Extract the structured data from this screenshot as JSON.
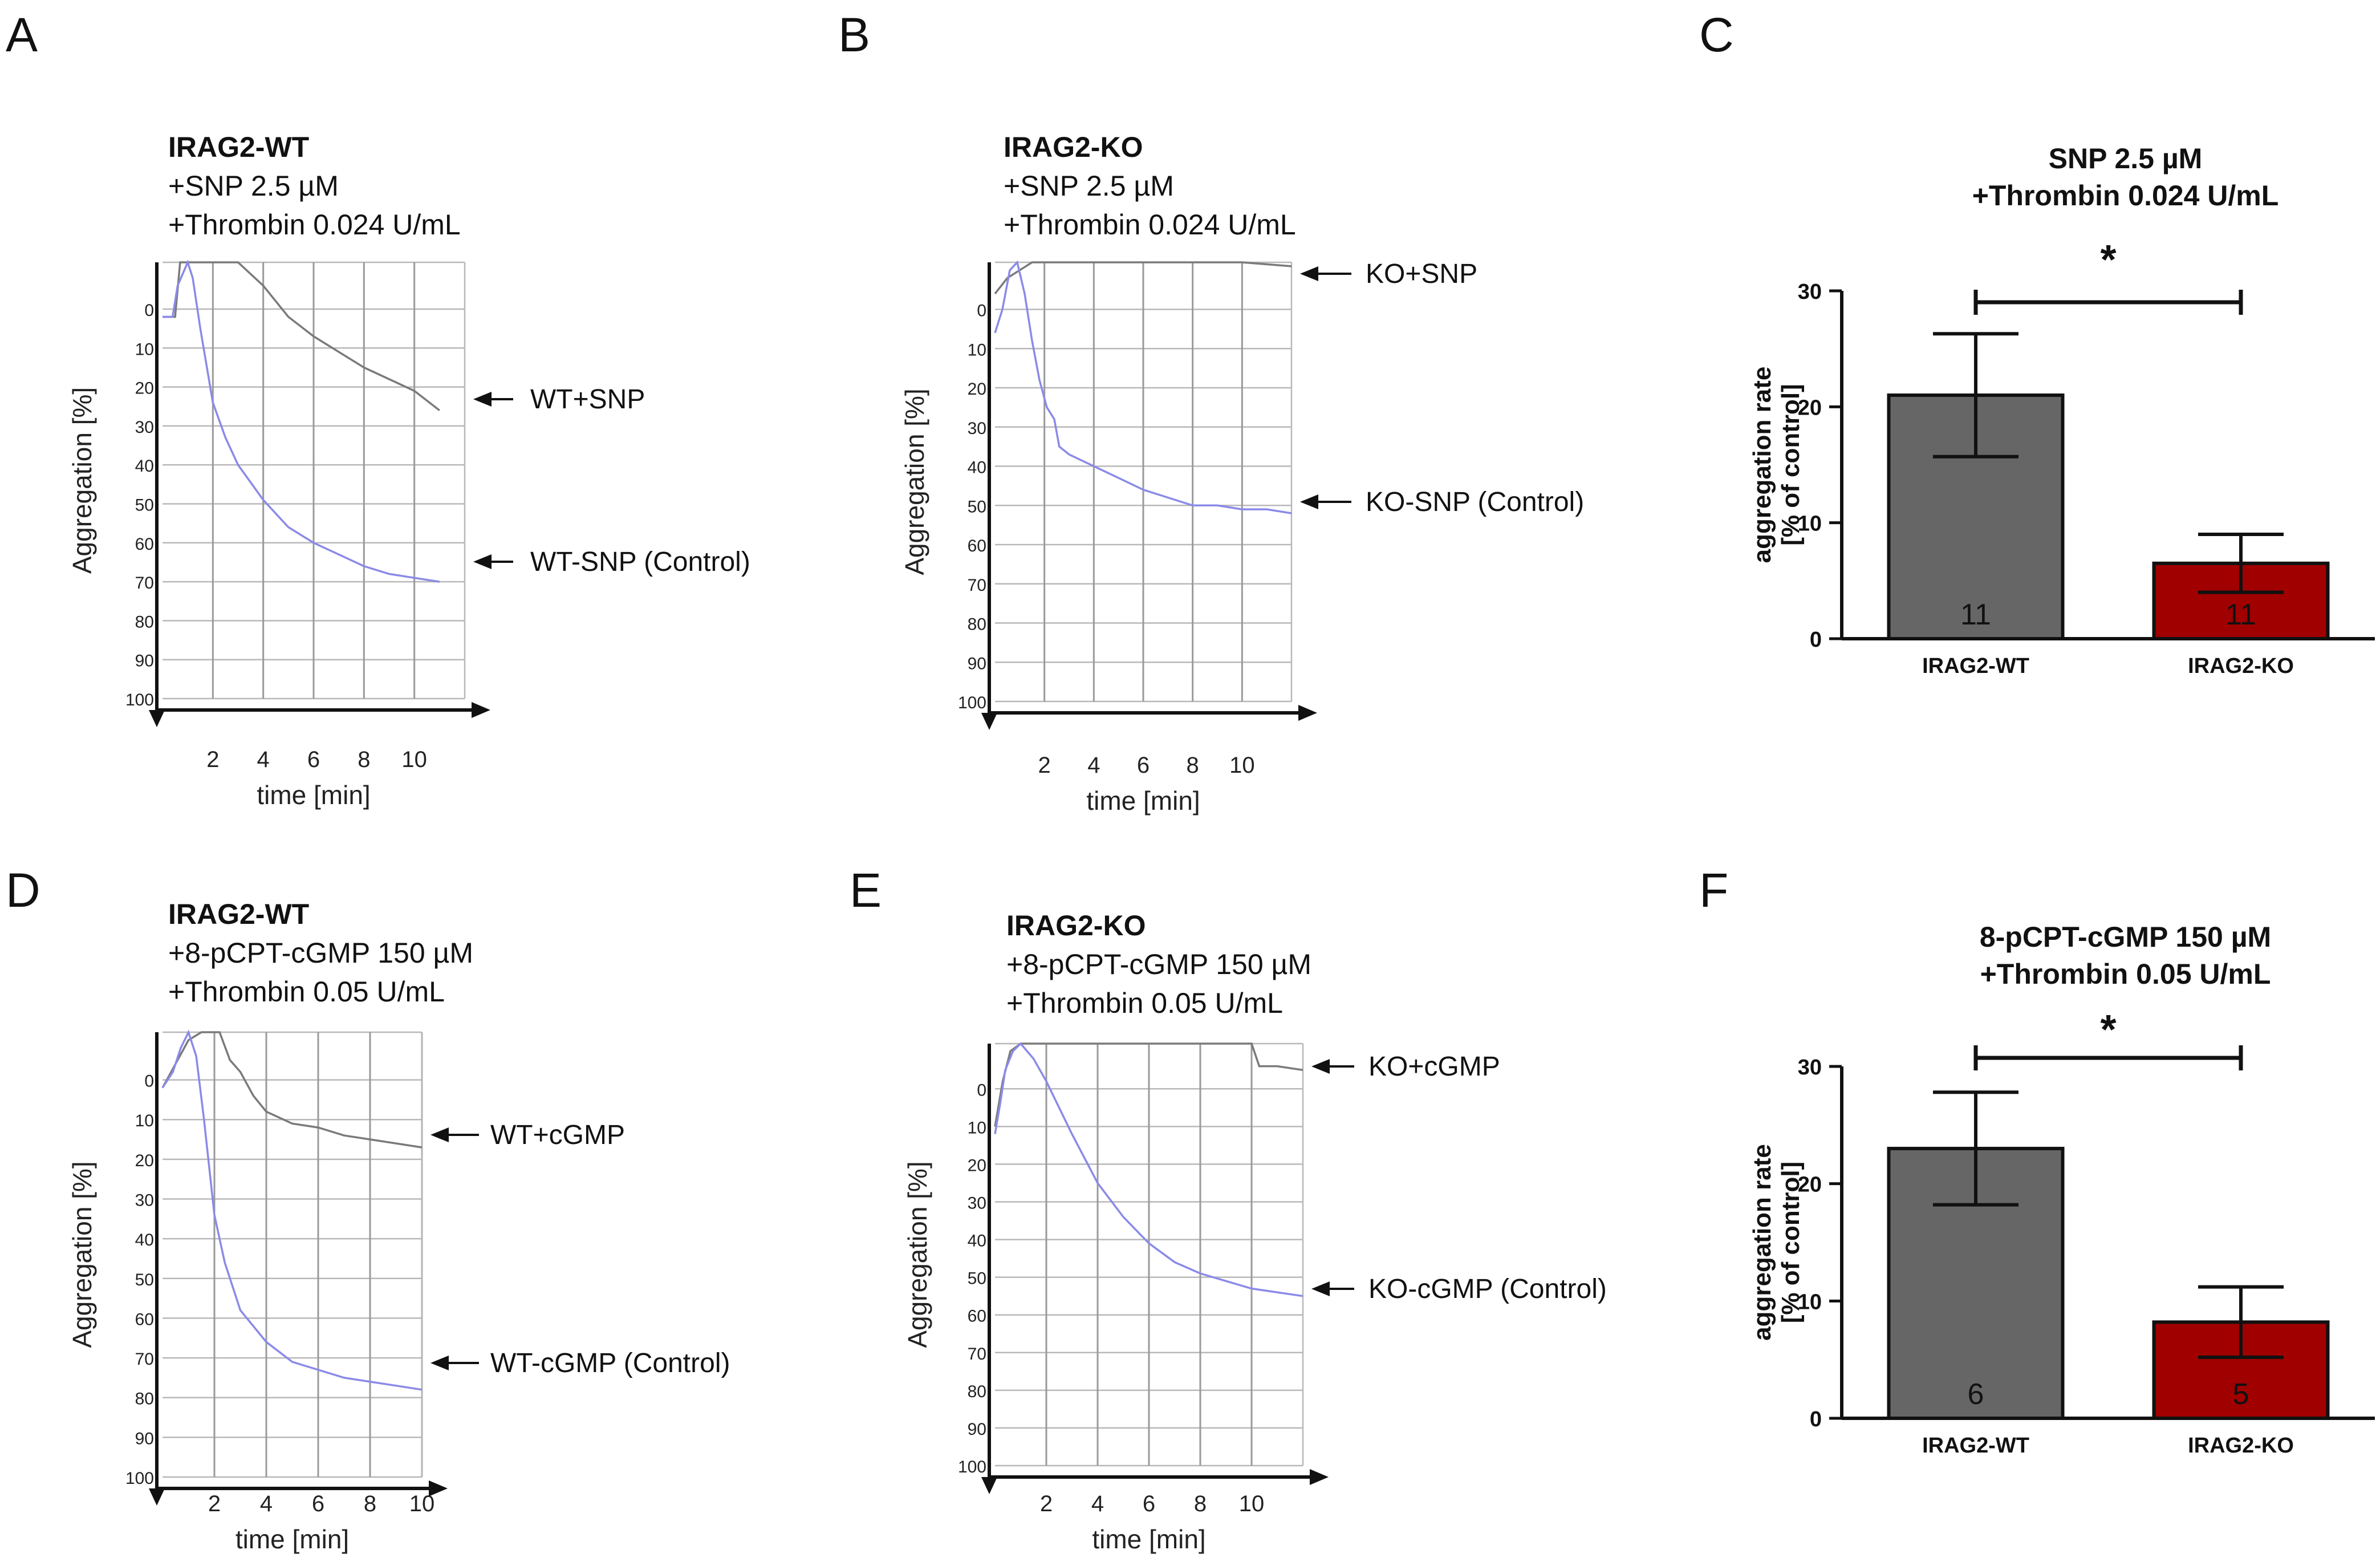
{
  "colors": {
    "wt_bar": "#666666",
    "ko_bar": "#a00000",
    "control_trace": "#8a8ae8",
    "treated_trace": "#7a7a7a"
  },
  "panels": [
    {
      "letter": "A"
    },
    {
      "letter": "B"
    },
    {
      "letter": "C"
    },
    {
      "letter": "D"
    },
    {
      "letter": "E"
    },
    {
      "letter": "F"
    }
  ],
  "chart_data": [
    {
      "panel": "A",
      "type": "line",
      "title_lines": [
        "IRAG2-WT",
        "+SNP 2.5 µM",
        "+Thrombin 0.024 U/mL"
      ],
      "xlabel": "time [min]",
      "ylabel": "Aggregation [%]",
      "x_ticks": [
        "2",
        "4",
        "6",
        "8",
        "10"
      ],
      "y_ticks": [
        "0",
        "10",
        "20",
        "30",
        "40",
        "50",
        "60",
        "70",
        "80",
        "90",
        "100"
      ],
      "xlim": [
        0,
        12
      ],
      "ylim": [
        100,
        -12
      ],
      "y_inverted": true,
      "series": [
        {
          "name": "WT+SNP",
          "style": "gray",
          "x": [
            0,
            0.5,
            0.7,
            2,
            2.5,
            3,
            4,
            5,
            6,
            7,
            8,
            9,
            10,
            11
          ],
          "y": [
            2,
            2,
            -12,
            -12,
            -12,
            -12,
            -6,
            2,
            7,
            11,
            15,
            18,
            21,
            26
          ]
        },
        {
          "name": "WT-SNP (Control)",
          "style": "blue",
          "x": [
            0,
            0.4,
            0.6,
            1.0,
            1.2,
            1.5,
            2,
            2.5,
            3,
            4,
            5,
            6,
            7,
            8,
            9,
            10,
            11
          ],
          "y": [
            2,
            2,
            -6,
            -12,
            -8,
            5,
            24,
            33,
            40,
            49,
            56,
            60,
            63,
            66,
            68,
            69,
            70
          ]
        }
      ]
    },
    {
      "panel": "B",
      "type": "line",
      "title_lines": [
        "IRAG2-KO",
        "+SNP 2.5 µM",
        "+Thrombin 0.024 U/mL"
      ],
      "xlabel": "time [min]",
      "ylabel": "Aggregation [%]",
      "x_ticks": [
        "2",
        "4",
        "6",
        "8",
        "10"
      ],
      "y_ticks": [
        "0",
        "10",
        "20",
        "30",
        "40",
        "50",
        "60",
        "70",
        "80",
        "90",
        "100"
      ],
      "xlim": [
        0,
        12
      ],
      "ylim": [
        100,
        -12
      ],
      "y_inverted": true,
      "series": [
        {
          "name": "KO+SNP",
          "style": "gray",
          "x": [
            0,
            0.5,
            1.0,
            1.5,
            2,
            4,
            6,
            8,
            10,
            12
          ],
          "y": [
            -4,
            -8,
            -10,
            -12,
            -12,
            -12,
            -12,
            -12,
            -12,
            -11
          ]
        },
        {
          "name": "KO-SNP (Control)",
          "style": "blue",
          "x": [
            0,
            0.3,
            0.6,
            0.9,
            1.2,
            1.5,
            1.8,
            2.1,
            2.4,
            2.6,
            3,
            4,
            5,
            6,
            7,
            8,
            9,
            10,
            11,
            12
          ],
          "y": [
            6,
            0,
            -10,
            -12,
            -4,
            8,
            18,
            25,
            28,
            35,
            37,
            40,
            43,
            46,
            48,
            50,
            50,
            51,
            51,
            52
          ]
        }
      ]
    },
    {
      "panel": "C",
      "type": "bar",
      "title_lines": [
        "SNP 2.5 µM",
        "+Thrombin 0.024 U/mL"
      ],
      "categories": [
        "IRAG2-WT",
        "IRAG2-KO"
      ],
      "values": [
        21,
        6.5
      ],
      "error": [
        5.3,
        2.5
      ],
      "n": [
        "11",
        "11"
      ],
      "ylabel_lines": [
        "aggregation rate",
        "[% of control]"
      ],
      "y_ticks": [
        "0",
        "10",
        "20",
        "30"
      ],
      "ylim": [
        0,
        30
      ],
      "significance": "*"
    },
    {
      "panel": "D",
      "type": "line",
      "title_lines": [
        "IRAG2-WT",
        "+8-pCPT-cGMP 150 µM",
        "+Thrombin 0.05 U/mL"
      ],
      "xlabel": "time [min]",
      "ylabel": "Aggregation [%]",
      "x_ticks": [
        "2",
        "4",
        "6",
        "8",
        "10"
      ],
      "y_ticks": [
        "0",
        "10",
        "20",
        "30",
        "40",
        "50",
        "60",
        "70",
        "80",
        "90",
        "100"
      ],
      "xlim": [
        0,
        10
      ],
      "ylim": [
        100,
        -12
      ],
      "y_inverted": true,
      "series": [
        {
          "name": "WT+cGMP",
          "style": "gray",
          "x": [
            0,
            0.5,
            1.0,
            1.5,
            2.2,
            2.6,
            3,
            3.5,
            4,
            5,
            6,
            7,
            8,
            9,
            10
          ],
          "y": [
            2,
            -4,
            -10,
            -12,
            -12,
            -5,
            -2,
            4,
            8,
            11,
            12,
            14,
            15,
            16,
            17
          ]
        },
        {
          "name": "WT-cGMP (Control)",
          "style": "blue",
          "x": [
            0,
            0.4,
            0.7,
            1.0,
            1.3,
            1.6,
            2,
            2.4,
            3,
            4,
            5,
            6,
            7,
            8,
            9,
            10
          ],
          "y": [
            2,
            -2,
            -8,
            -12,
            -6,
            10,
            34,
            46,
            58,
            66,
            71,
            73,
            75,
            76,
            77,
            78
          ]
        }
      ]
    },
    {
      "panel": "E",
      "type": "line",
      "title_lines": [
        "IRAG2-KO",
        "+8-pCPT-cGMP 150 µM",
        "+Thrombin 0.05 U/mL"
      ],
      "xlabel": "time [min]",
      "ylabel": "Aggregation [%]",
      "x_ticks": [
        "2",
        "4",
        "6",
        "8",
        "10"
      ],
      "y_ticks": [
        "0",
        "10",
        "20",
        "30",
        "40",
        "50",
        "60",
        "70",
        "80",
        "90",
        "100"
      ],
      "xlim": [
        0,
        12
      ],
      "ylim": [
        100,
        -12
      ],
      "y_inverted": true,
      "series": [
        {
          "name": "KO+cGMP",
          "style": "gray",
          "x": [
            0,
            0.3,
            0.6,
            1.0,
            2,
            4,
            6,
            8,
            10,
            10.3,
            11,
            12
          ],
          "y": [
            10,
            -2,
            -10,
            -12,
            -12,
            -12,
            -12,
            -12,
            -12,
            -6,
            -6,
            -5
          ]
        },
        {
          "name": "KO-cGMP (Control)",
          "style": "blue",
          "x": [
            0,
            0.2,
            0.4,
            0.7,
            1.0,
            1.5,
            2,
            3,
            4,
            5,
            6,
            7,
            8,
            9,
            10,
            11,
            12
          ],
          "y": [
            12,
            4,
            -5,
            -10,
            -12,
            -8,
            -2,
            12,
            25,
            34,
            41,
            46,
            49,
            51,
            53,
            54,
            55
          ]
        }
      ]
    },
    {
      "panel": "F",
      "type": "bar",
      "title_lines": [
        "8-pCPT-cGMP 150 µM",
        "+Thrombin 0.05 U/mL"
      ],
      "categories": [
        "IRAG2-WT",
        "IRAG2-KO"
      ],
      "values": [
        23,
        8.2
      ],
      "error": [
        4.8,
        3
      ],
      "n": [
        "6",
        "5"
      ],
      "ylabel_lines": [
        "aggregation rate",
        "[% of control]"
      ],
      "y_ticks": [
        "0",
        "10",
        "20",
        "30"
      ],
      "ylim": [
        0,
        30
      ],
      "significance": "*"
    }
  ]
}
